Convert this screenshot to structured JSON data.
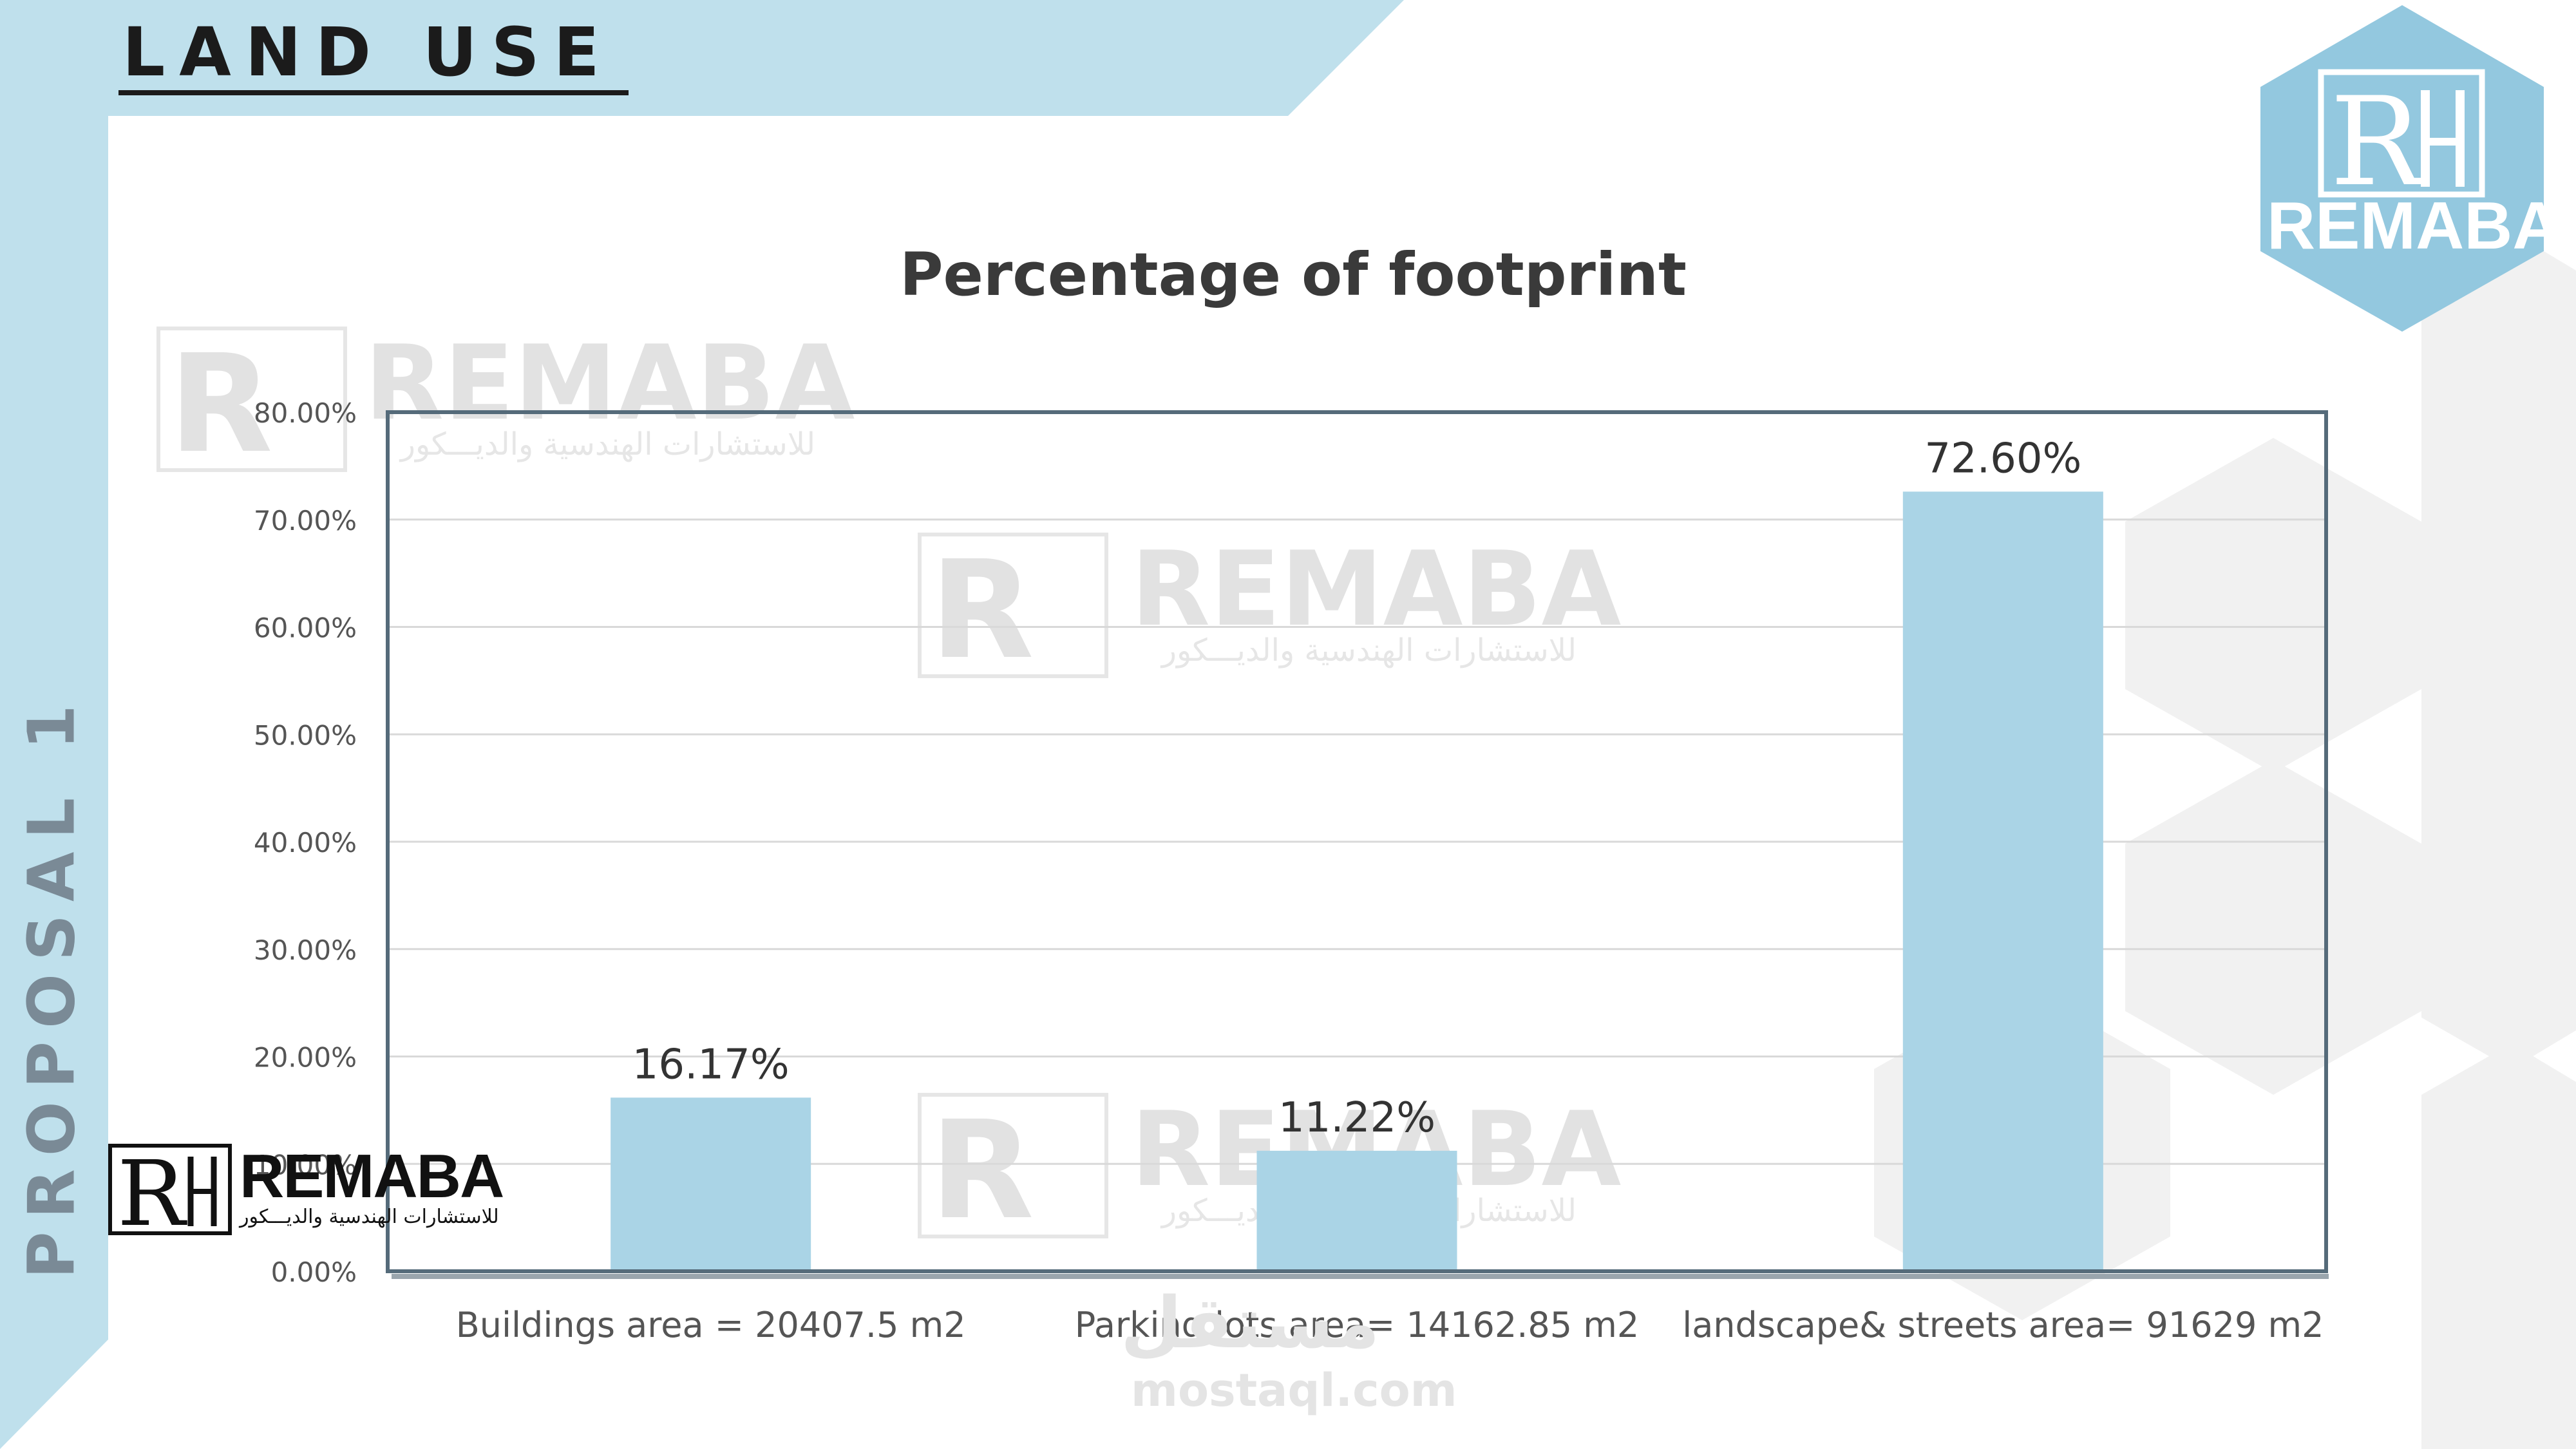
{
  "header": {
    "title": "LAND USE"
  },
  "side_label": "PROPOSAL 1",
  "logo": {
    "name": "REMABA",
    "subtitle": "للاستشارات الهندسية والديـــكور"
  },
  "watermark": {
    "text": "REMABA",
    "subtitle": "للاستشارات الهندسية والديـــكور",
    "site_ar": "مستقل",
    "site": "mostaql.com"
  },
  "colors": {
    "sidebar": "#bfe0ec",
    "bar": "#aad4e6",
    "logo_hex": "#93c8df"
  },
  "chart_data": {
    "type": "bar",
    "title": "Percentage of footprint",
    "xlabel": "",
    "ylabel": "",
    "categories": [
      "Buildings area = 20407.5 m2",
      "Parking lots area= 14162.85 m2",
      "landscape& streets area= 91629 m2"
    ],
    "values": [
      16.17,
      11.22,
      72.6
    ],
    "data_labels": [
      "16.17%",
      "11.22%",
      "72.60%"
    ],
    "ylim": [
      0,
      80
    ],
    "yticks": [
      0,
      10,
      20,
      30,
      40,
      50,
      60,
      70,
      80
    ],
    "ytick_labels": [
      "0.00%",
      "10.00%",
      "20.00%",
      "30.00%",
      "40.00%",
      "50.00%",
      "60.00%",
      "70.00%",
      "80.00%"
    ],
    "grid": true,
    "legend": "none"
  }
}
